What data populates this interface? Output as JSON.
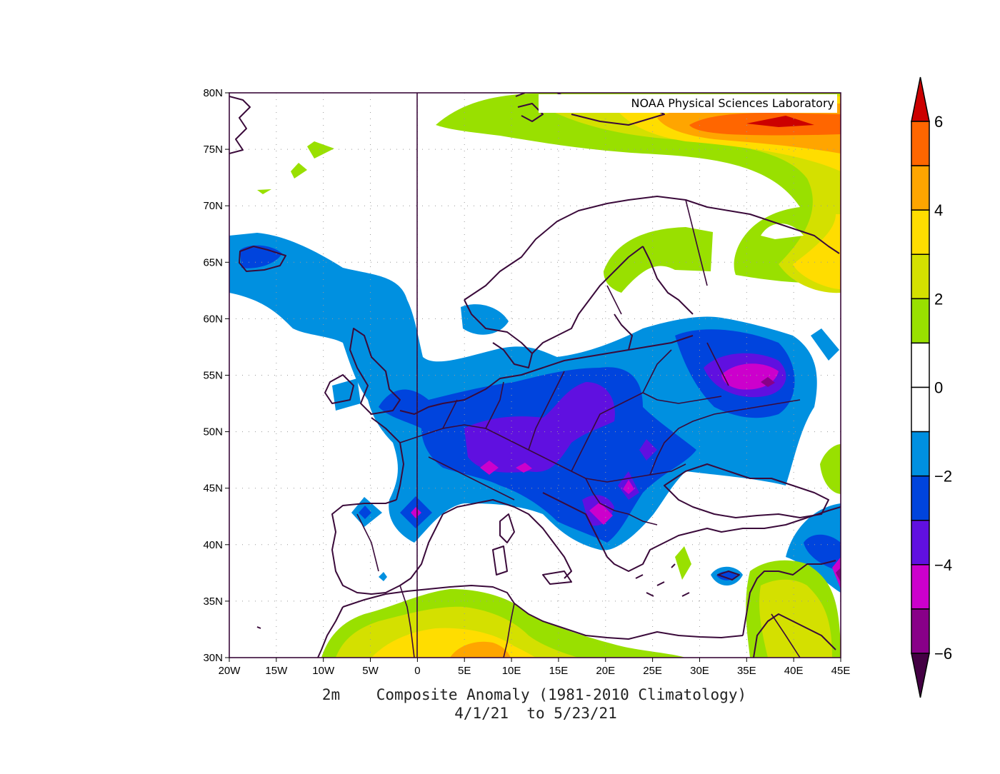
{
  "credit": "NOAA Physical Sciences Laboratory",
  "caption": {
    "line1": "2m    Composite Anomaly (1981-2010 Climatology)",
    "line2": "4/1/21  to 5/23/21"
  },
  "axes": {
    "lon_labels": [
      "20W",
      "15W",
      "10W",
      "5W",
      "0",
      "5E",
      "10E",
      "15E",
      "20E",
      "25E",
      "30E",
      "35E",
      "40E",
      "45E"
    ],
    "lat_labels": [
      "80N",
      "75N",
      "70N",
      "65N",
      "60N",
      "55N",
      "50N",
      "45N",
      "40N",
      "35N",
      "30N"
    ],
    "lon_range": [
      -20,
      45
    ],
    "lat_range": [
      30,
      80
    ]
  },
  "colorbar": {
    "labels": [
      "6",
      "4",
      "2",
      "0",
      "−2",
      "−4",
      "−6"
    ],
    "levels": [
      6,
      5,
      4,
      3,
      2,
      1,
      0,
      -1,
      -2,
      -3,
      -4,
      -5,
      -6
    ],
    "colors": [
      "#cc0000",
      "#ff6600",
      "#ffa500",
      "#ffdd00",
      "#d4e000",
      "#99e000",
      "#ffffff",
      "#ffffff",
      "#0090e0",
      "#0044dd",
      "#6010e0",
      "#cc00cc",
      "#880088",
      "#440044"
    ]
  },
  "colors": {
    "coast": "#3a0a3a",
    "grid": "#9a9a9a"
  }
}
